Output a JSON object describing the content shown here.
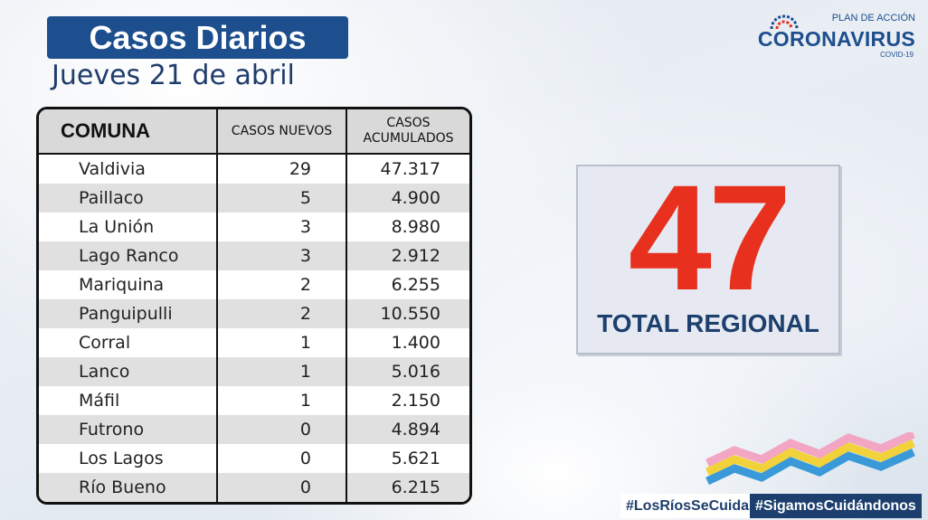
{
  "header": {
    "title": "Casos Diarios",
    "subtitle": "Jueves 21 de abril"
  },
  "logo": {
    "plan": "PLAN DE ACCIÓN",
    "name": "CORONAVIRUS",
    "covid": "COVID-19"
  },
  "table": {
    "columns": [
      "COMUNA",
      "CASOS NUEVOS",
      "CASOS ACUMULADOS"
    ],
    "rows": [
      {
        "comuna": "Valdivia",
        "nuevos": "29",
        "acumulados": "47.317"
      },
      {
        "comuna": "Paillaco",
        "nuevos": "5",
        "acumulados": "4.900"
      },
      {
        "comuna": "La Unión",
        "nuevos": "3",
        "acumulados": "8.980"
      },
      {
        "comuna": "Lago Ranco",
        "nuevos": "3",
        "acumulados": "2.912"
      },
      {
        "comuna": "Mariquina",
        "nuevos": "2",
        "acumulados": "6.255"
      },
      {
        "comuna": "Panguipulli",
        "nuevos": "2",
        "acumulados": "10.550"
      },
      {
        "comuna": "Corral",
        "nuevos": "1",
        "acumulados": "1.400"
      },
      {
        "comuna": "Lanco",
        "nuevos": "1",
        "acumulados": "5.016"
      },
      {
        "comuna": "Máfil",
        "nuevos": "1",
        "acumulados": "2.150"
      },
      {
        "comuna": "Futrono",
        "nuevos": "0",
        "acumulados": "4.894"
      },
      {
        "comuna": "Los Lagos",
        "nuevos": "0",
        "acumulados": "5.621"
      },
      {
        "comuna": "Río Bueno",
        "nuevos": "0",
        "acumulados": "6.215"
      }
    ]
  },
  "total": {
    "value": "47",
    "label": "TOTAL REGIONAL"
  },
  "hashtags": {
    "first": "#LosRíosSeCuida",
    "second": "#SigamosCuidándonos"
  },
  "colors": {
    "navy": "#1d4e8e",
    "red": "#e8301e",
    "dark_blue": "#1d3f6d"
  }
}
